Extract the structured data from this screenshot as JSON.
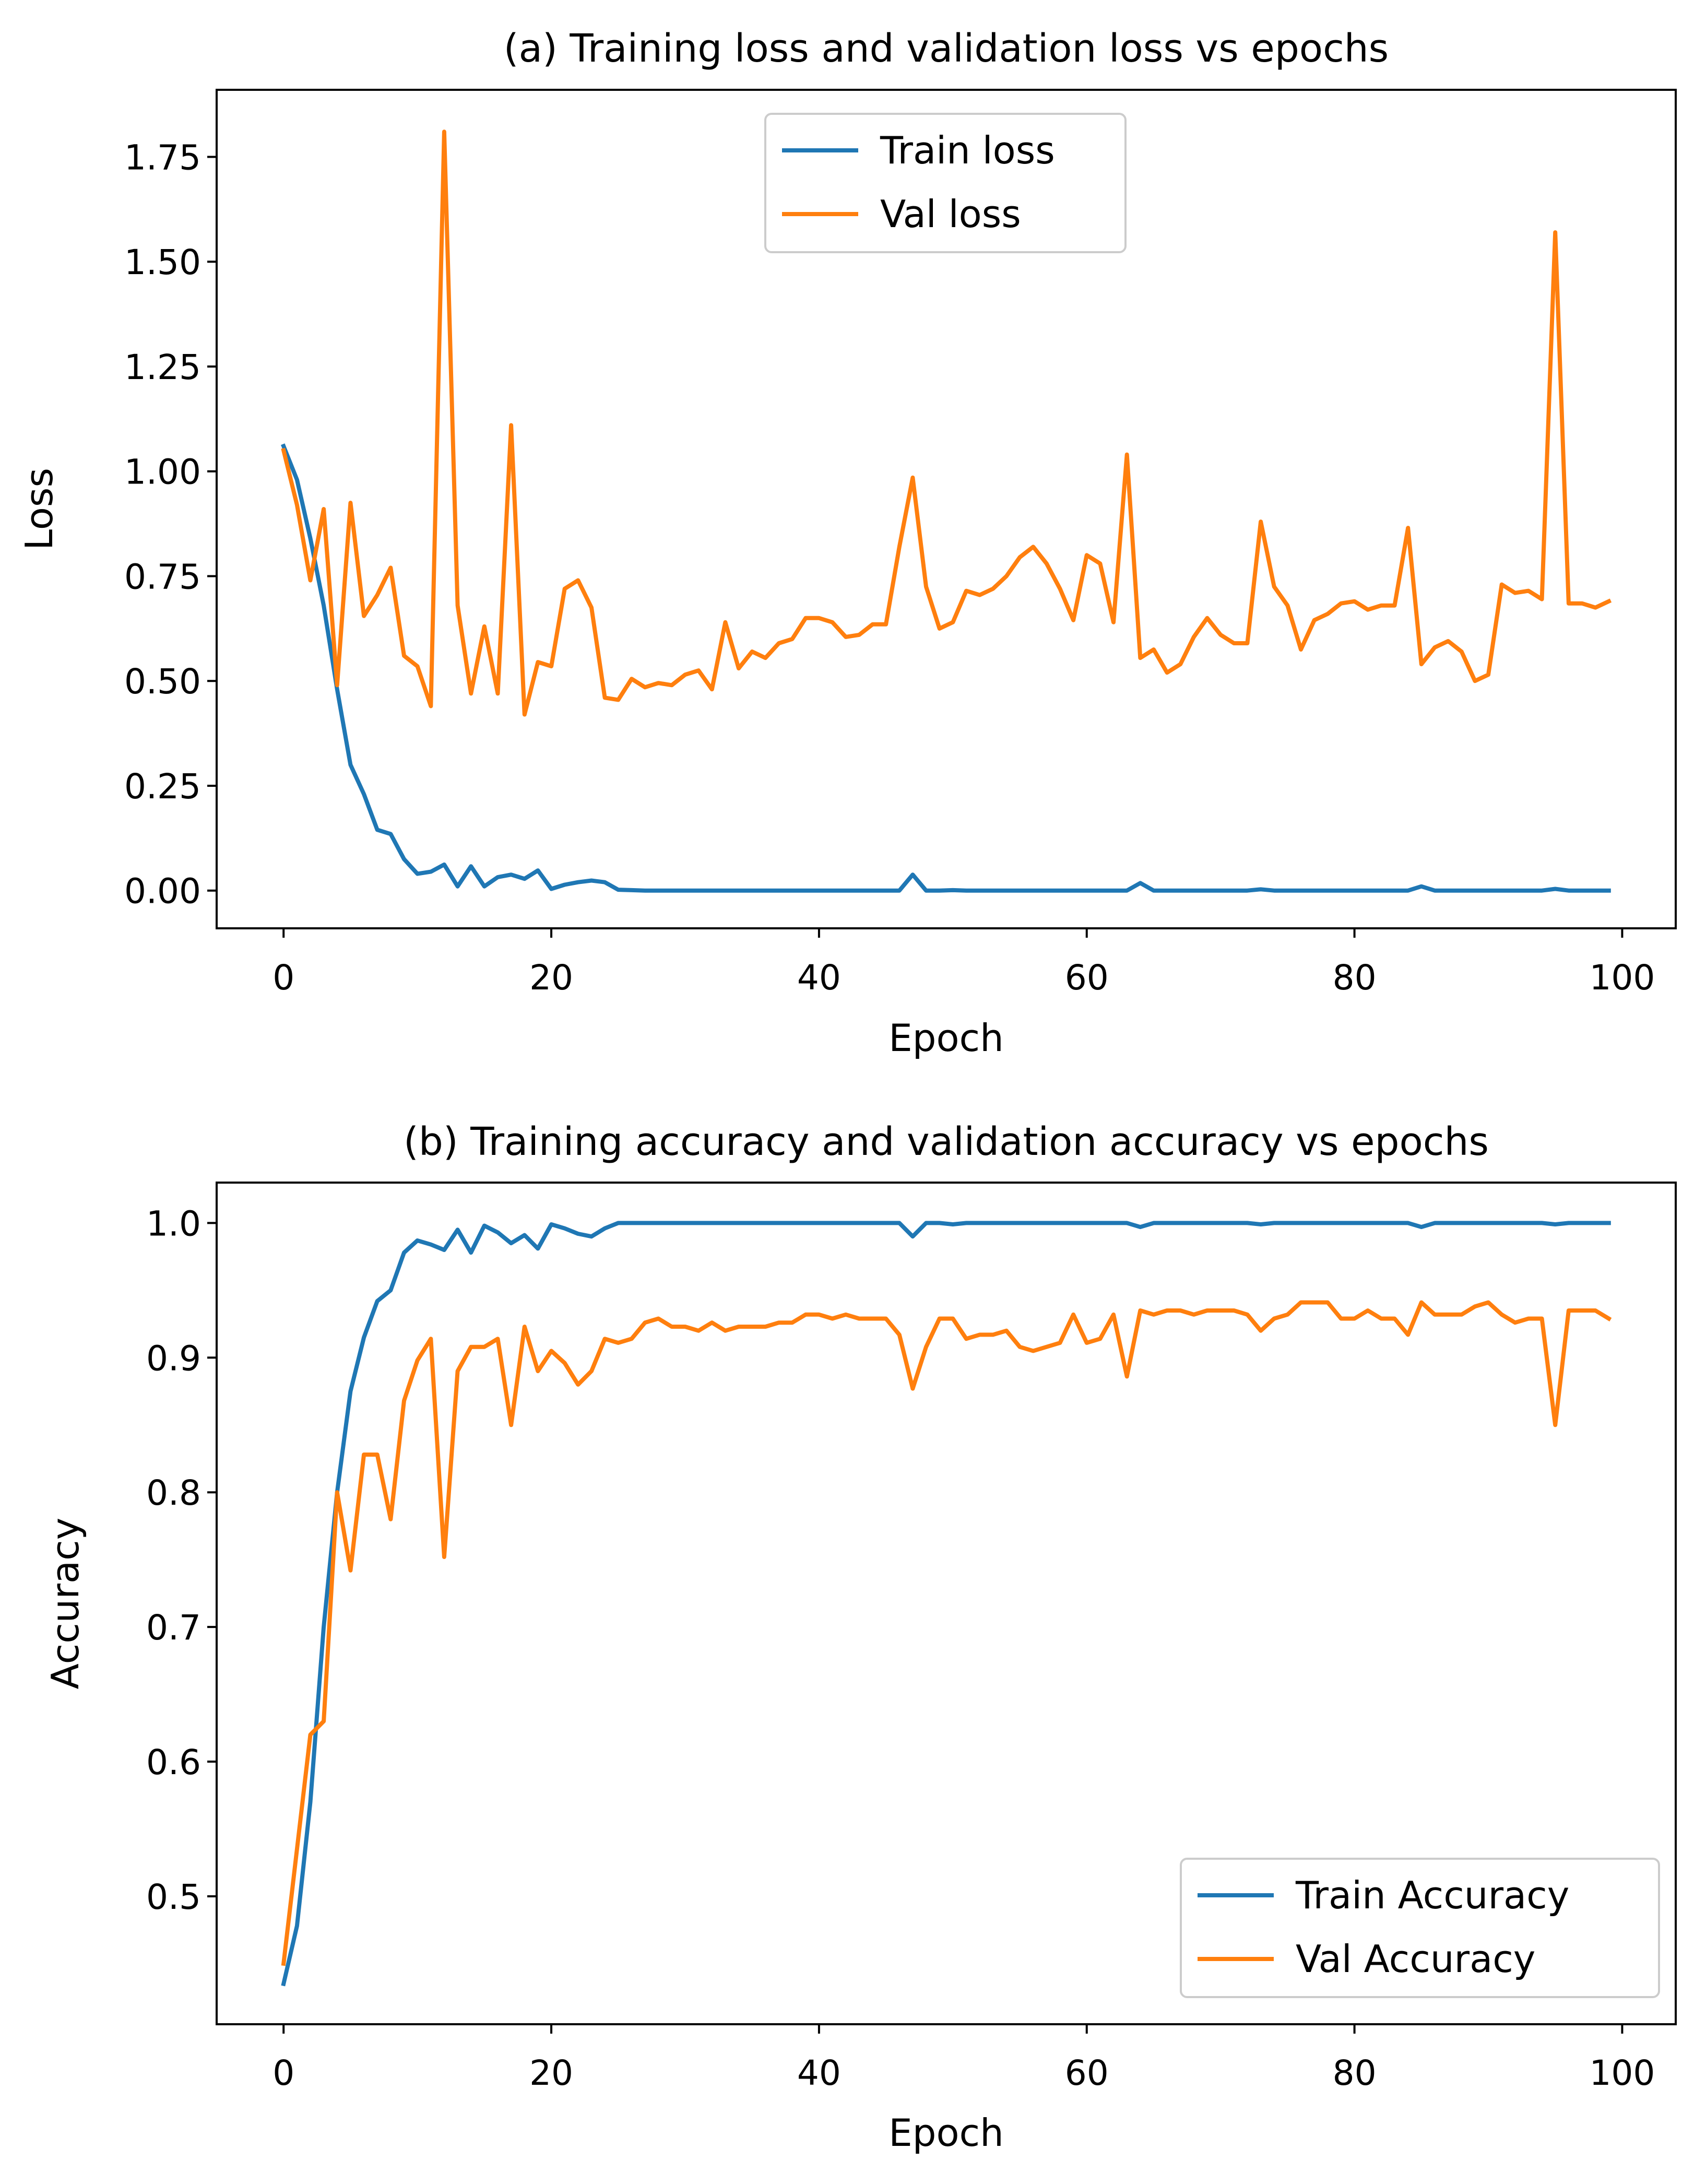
{
  "chart_data": [
    {
      "type": "line",
      "title": "(a) Training loss and validation loss vs epochs",
      "xlabel": "Epoch",
      "ylabel": "Loss",
      "xlim": [
        -5,
        104
      ],
      "ylim": [
        -0.09,
        1.91
      ],
      "xticks": [
        0,
        20,
        40,
        60,
        80,
        100
      ],
      "yticks": [
        0,
        0.25,
        0.5,
        0.75,
        1.0,
        1.25,
        1.5,
        1.75
      ],
      "xtick_labels": [
        "0",
        "20",
        "40",
        "60",
        "80",
        "100"
      ],
      "ytick_labels": [
        "0.00",
        "0.25",
        "0.50",
        "0.75",
        "1.00",
        "1.25",
        "1.50",
        "1.75"
      ],
      "grid": false,
      "legend_position": "upper-center",
      "x": [
        0,
        1,
        2,
        3,
        4,
        5,
        6,
        7,
        8,
        9,
        10,
        11,
        12,
        13,
        14,
        15,
        16,
        17,
        18,
        19,
        20,
        21,
        22,
        23,
        24,
        25,
        26,
        27,
        28,
        29,
        30,
        31,
        32,
        33,
        34,
        35,
        36,
        37,
        38,
        39,
        40,
        41,
        42,
        43,
        44,
        45,
        46,
        47,
        48,
        49,
        50,
        51,
        52,
        53,
        54,
        55,
        56,
        57,
        58,
        59,
        60,
        61,
        62,
        63,
        64,
        65,
        66,
        67,
        68,
        69,
        70,
        71,
        72,
        73,
        74,
        75,
        76,
        77,
        78,
        79,
        80,
        81,
        82,
        83,
        84,
        85,
        86,
        87,
        88,
        89,
        90,
        91,
        92,
        93,
        94,
        95,
        96,
        97,
        98,
        99
      ],
      "series": [
        {
          "name": "Train loss",
          "color": "#1f77b4",
          "values": [
            1.06,
            0.98,
            0.84,
            0.68,
            0.48,
            0.3,
            0.23,
            0.145,
            0.135,
            0.075,
            0.04,
            0.045,
            0.062,
            0.01,
            0.058,
            0.01,
            0.032,
            0.038,
            0.028,
            0.048,
            0.004,
            0.014,
            0.02,
            0.024,
            0.02,
            0.002,
            0.001,
            0,
            0,
            0,
            0,
            0,
            0,
            0,
            0,
            0,
            0,
            0,
            0,
            0,
            0,
            0,
            0,
            0,
            0,
            0,
            0,
            0.038,
            0,
            0,
            0.001,
            0,
            0,
            0,
            0,
            0,
            0,
            0,
            0,
            0,
            0,
            0,
            0,
            0,
            0.018,
            0,
            0,
            0,
            0,
            0,
            0,
            0,
            0,
            0.003,
            0,
            0,
            0,
            0,
            0,
            0,
            0,
            0,
            0,
            0,
            0,
            0.01,
            0,
            0,
            0,
            0,
            0,
            0,
            0,
            0,
            0,
            0.004,
            0,
            0,
            0,
            0
          ]
        },
        {
          "name": "Val loss",
          "color": "#ff7f0e",
          "values": [
            1.05,
            0.92,
            0.74,
            0.91,
            0.49,
            0.925,
            0.655,
            0.705,
            0.77,
            0.56,
            0.535,
            0.44,
            1.81,
            0.68,
            0.47,
            0.63,
            0.47,
            1.11,
            0.42,
            0.545,
            0.535,
            0.72,
            0.74,
            0.675,
            0.46,
            0.455,
            0.505,
            0.485,
            0.495,
            0.49,
            0.515,
            0.525,
            0.48,
            0.64,
            0.53,
            0.57,
            0.555,
            0.59,
            0.6,
            0.65,
            0.65,
            0.64,
            0.605,
            0.61,
            0.635,
            0.635,
            0.82,
            0.985,
            0.725,
            0.625,
            0.64,
            0.715,
            0.705,
            0.72,
            0.75,
            0.795,
            0.82,
            0.78,
            0.72,
            0.645,
            0.8,
            0.78,
            0.64,
            1.04,
            0.555,
            0.575,
            0.52,
            0.54,
            0.605,
            0.65,
            0.61,
            0.59,
            0.59,
            0.88,
            0.725,
            0.68,
            0.575,
            0.645,
            0.66,
            0.685,
            0.69,
            0.67,
            0.68,
            0.68,
            0.865,
            0.54,
            0.58,
            0.595,
            0.57,
            0.5,
            0.515,
            0.73,
            0.71,
            0.715,
            0.695,
            1.57,
            0.685,
            0.685,
            0.675,
            0.69
          ]
        }
      ]
    },
    {
      "type": "line",
      "title": "(b) Training accuracy and validation accuracy vs epochs",
      "xlabel": "Epoch",
      "ylabel": "Accuracy",
      "xlim": [
        -5,
        104
      ],
      "ylim": [
        0.405,
        1.03
      ],
      "xticks": [
        0,
        20,
        40,
        60,
        80,
        100
      ],
      "yticks": [
        0.5,
        0.6,
        0.7,
        0.8,
        0.9,
        1.0
      ],
      "xtick_labels": [
        "0",
        "20",
        "40",
        "60",
        "80",
        "100"
      ],
      "ytick_labels": [
        "0.5",
        "0.6",
        "0.7",
        "0.8",
        "0.9",
        "1.0"
      ],
      "grid": false,
      "legend_position": "lower-right",
      "x": [
        0,
        1,
        2,
        3,
        4,
        5,
        6,
        7,
        8,
        9,
        10,
        11,
        12,
        13,
        14,
        15,
        16,
        17,
        18,
        19,
        20,
        21,
        22,
        23,
        24,
        25,
        26,
        27,
        28,
        29,
        30,
        31,
        32,
        33,
        34,
        35,
        36,
        37,
        38,
        39,
        40,
        41,
        42,
        43,
        44,
        45,
        46,
        47,
        48,
        49,
        50,
        51,
        52,
        53,
        54,
        55,
        56,
        57,
        58,
        59,
        60,
        61,
        62,
        63,
        64,
        65,
        66,
        67,
        68,
        69,
        70,
        71,
        72,
        73,
        74,
        75,
        76,
        77,
        78,
        79,
        80,
        81,
        82,
        83,
        84,
        85,
        86,
        87,
        88,
        89,
        90,
        91,
        92,
        93,
        94,
        95,
        96,
        97,
        98,
        99
      ],
      "series": [
        {
          "name": "Train Accuracy",
          "color": "#1f77b4",
          "values": [
            0.435,
            0.478,
            0.57,
            0.7,
            0.8,
            0.875,
            0.915,
            0.942,
            0.95,
            0.978,
            0.987,
            0.984,
            0.98,
            0.995,
            0.978,
            0.998,
            0.993,
            0.985,
            0.991,
            0.981,
            0.999,
            0.996,
            0.992,
            0.99,
            0.996,
            1.0,
            1.0,
            1.0,
            1.0,
            1.0,
            1.0,
            1.0,
            1.0,
            1.0,
            1.0,
            1.0,
            1.0,
            1.0,
            1.0,
            1.0,
            1.0,
            1.0,
            1.0,
            1.0,
            1.0,
            1.0,
            1.0,
            0.99,
            1.0,
            1.0,
            0.999,
            1.0,
            1.0,
            1.0,
            1.0,
            1.0,
            1.0,
            1.0,
            1.0,
            1.0,
            1.0,
            1.0,
            1.0,
            1.0,
            0.997,
            1.0,
            1.0,
            1.0,
            1.0,
            1.0,
            1.0,
            1.0,
            1.0,
            0.999,
            1.0,
            1.0,
            1.0,
            1.0,
            1.0,
            1.0,
            1.0,
            1.0,
            1.0,
            1.0,
            1.0,
            0.997,
            1.0,
            1.0,
            1.0,
            1.0,
            1.0,
            1.0,
            1.0,
            1.0,
            1.0,
            0.999,
            1.0,
            1.0,
            1.0,
            1.0
          ]
        },
        {
          "name": "Val Accuracy",
          "color": "#ff7f0e",
          "values": [
            0.45,
            0.535,
            0.62,
            0.63,
            0.8,
            0.742,
            0.828,
            0.828,
            0.78,
            0.868,
            0.898,
            0.914,
            0.752,
            0.89,
            0.908,
            0.908,
            0.914,
            0.85,
            0.923,
            0.89,
            0.905,
            0.896,
            0.88,
            0.89,
            0.914,
            0.911,
            0.914,
            0.926,
            0.929,
            0.923,
            0.923,
            0.92,
            0.926,
            0.92,
            0.923,
            0.923,
            0.923,
            0.926,
            0.926,
            0.932,
            0.932,
            0.929,
            0.932,
            0.929,
            0.929,
            0.929,
            0.917,
            0.877,
            0.908,
            0.929,
            0.929,
            0.914,
            0.917,
            0.917,
            0.92,
            0.908,
            0.905,
            0.908,
            0.911,
            0.932,
            0.911,
            0.914,
            0.932,
            0.886,
            0.935,
            0.932,
            0.935,
            0.935,
            0.932,
            0.935,
            0.935,
            0.935,
            0.932,
            0.92,
            0.929,
            0.932,
            0.941,
            0.941,
            0.941,
            0.929,
            0.929,
            0.935,
            0.929,
            0.929,
            0.917,
            0.941,
            0.932,
            0.932,
            0.932,
            0.938,
            0.941,
            0.932,
            0.926,
            0.929,
            0.929,
            0.85,
            0.935,
            0.935,
            0.935,
            0.929
          ]
        }
      ]
    }
  ]
}
